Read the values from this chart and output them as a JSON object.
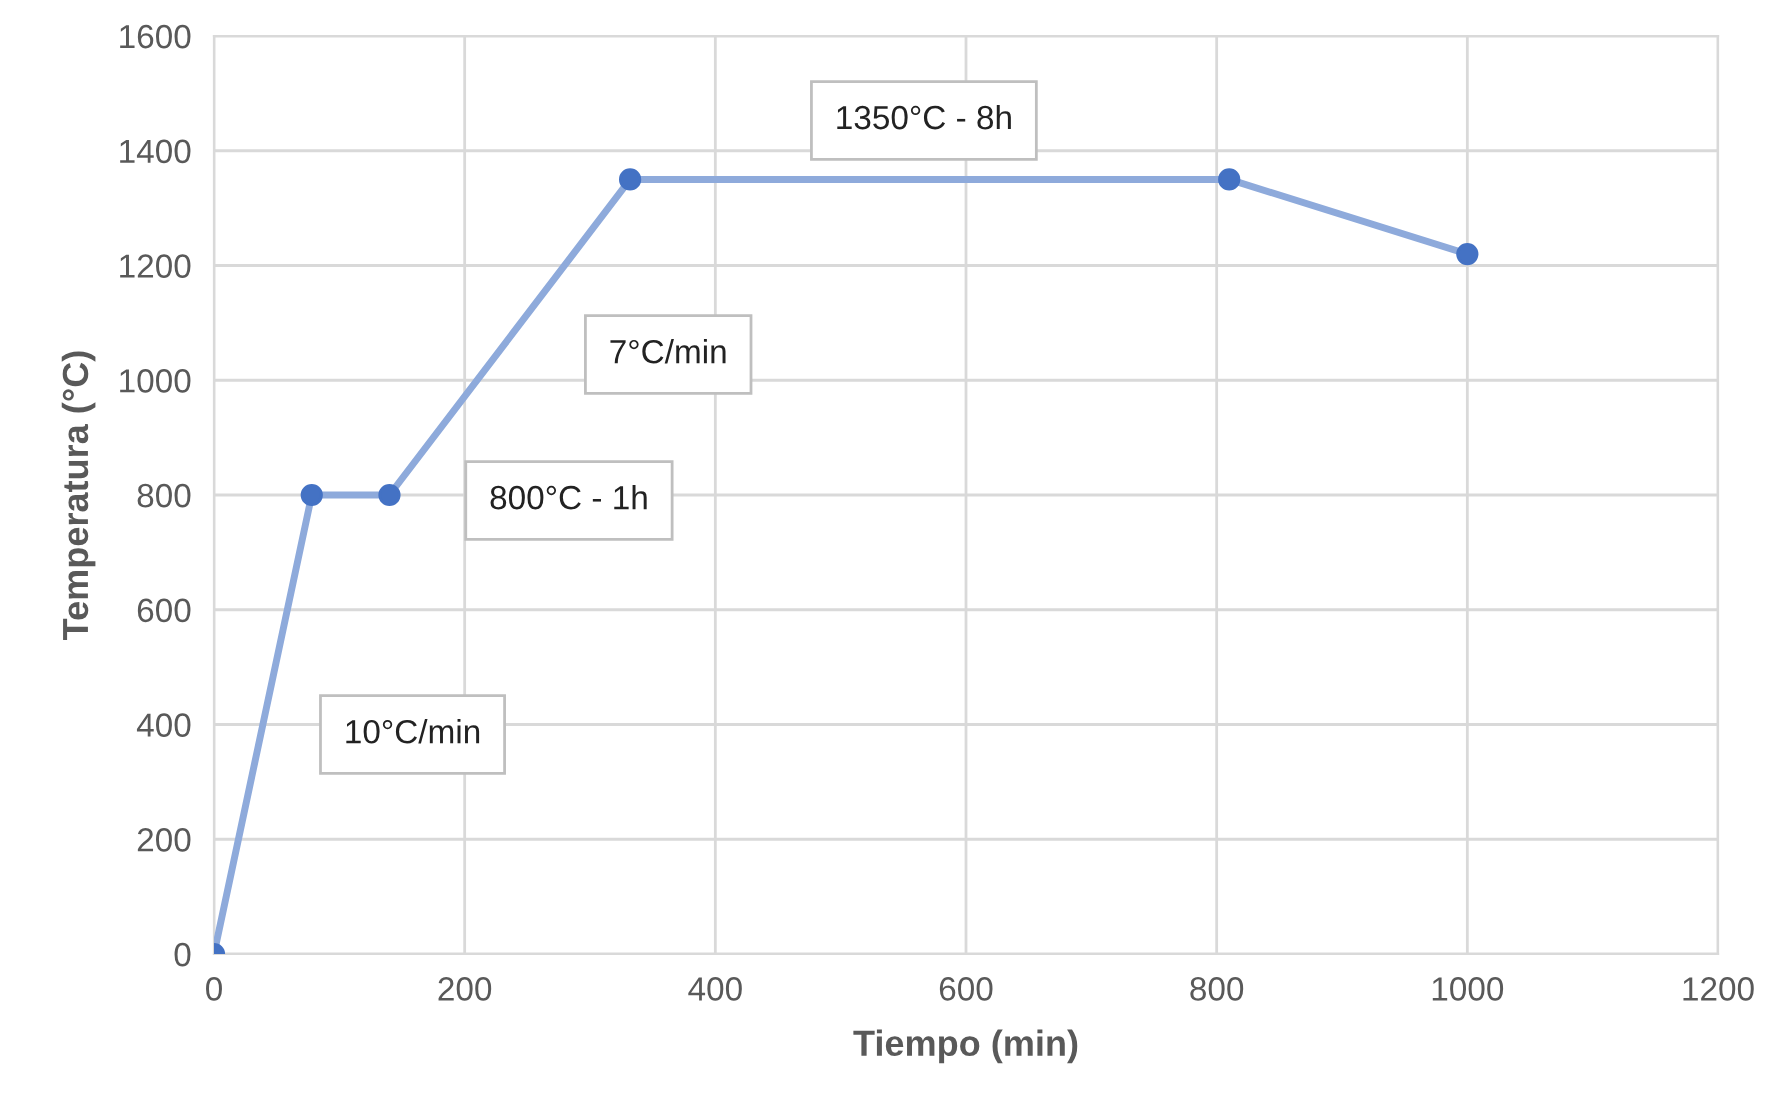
{
  "chart_data": {
    "type": "line",
    "xlabel": "Tiempo (min)",
    "ylabel": "Temperatura (°C)",
    "x": [
      0,
      78,
      140,
      332,
      810,
      1000
    ],
    "series": [
      {
        "color": "#8eaadb",
        "values": [
          0,
          800,
          800,
          1350,
          1350,
          1220
        ]
      }
    ],
    "marker": "circle",
    "line_style": "solid",
    "grid": true,
    "legend": false,
    "xlim": [
      0,
      1200
    ],
    "xticks": [
      0,
      200,
      400,
      600,
      800,
      1000,
      1200
    ],
    "ylim": [
      0,
      1600
    ],
    "yticks": [
      0,
      200,
      400,
      600,
      800,
      1000,
      1200,
      1400,
      1600
    ],
    "annotations": [
      "10°C/min",
      "800°C - 1h",
      "7°C/min",
      "1350°C - 8h"
    ]
  }
}
